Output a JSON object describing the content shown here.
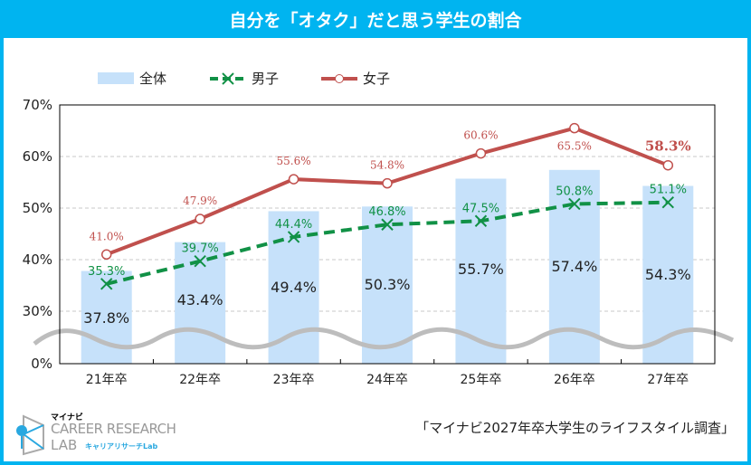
{
  "title": "自分を「オタク」だと思う学生の割合",
  "source": "「マイナビ2027年卒大学生のライフスタイル調査」",
  "logo": {
    "top": "マイナビ",
    "main": "CAREER RESEARCH",
    "lab": "LAB",
    "sub": "キャリアリサーチLab"
  },
  "colors": {
    "bar": "#c6e1fa",
    "male": "#119146",
    "female": "#c0504d",
    "frame": "#00b4f0"
  },
  "chart_data": {
    "type": "bar+line",
    "categories": [
      "21年卒",
      "22年卒",
      "23年卒",
      "24年卒",
      "25年卒",
      "26年卒",
      "27年卒"
    ],
    "yticks": [
      "70%",
      "60%",
      "50%",
      "40%",
      "30%",
      "0%"
    ],
    "ylim": [
      0,
      70
    ],
    "axis_break": "between 0% and 30%",
    "series": [
      {
        "name": "全体",
        "type": "bar",
        "values": [
          37.8,
          43.4,
          49.4,
          50.3,
          55.7,
          57.4,
          54.3
        ],
        "labels": [
          "37.8%",
          "43.4%",
          "49.4%",
          "50.3%",
          "55.7%",
          "57.4%",
          "54.3%"
        ]
      },
      {
        "name": "男子",
        "type": "line-dashed",
        "values": [
          35.3,
          39.7,
          44.4,
          46.8,
          47.5,
          50.8,
          51.1
        ],
        "labels": [
          "35.3%",
          "39.7%",
          "44.4%",
          "46.8%",
          "47.5%",
          "50.8%",
          "51.1%"
        ]
      },
      {
        "name": "女子",
        "type": "line",
        "values": [
          41.0,
          47.9,
          55.6,
          54.8,
          60.6,
          65.5,
          58.3
        ],
        "labels": [
          "41.0%",
          "47.9%",
          "55.6%",
          "54.8%",
          "60.6%",
          "65.5%",
          "58.3%"
        ]
      }
    ],
    "legend": "top-left"
  }
}
